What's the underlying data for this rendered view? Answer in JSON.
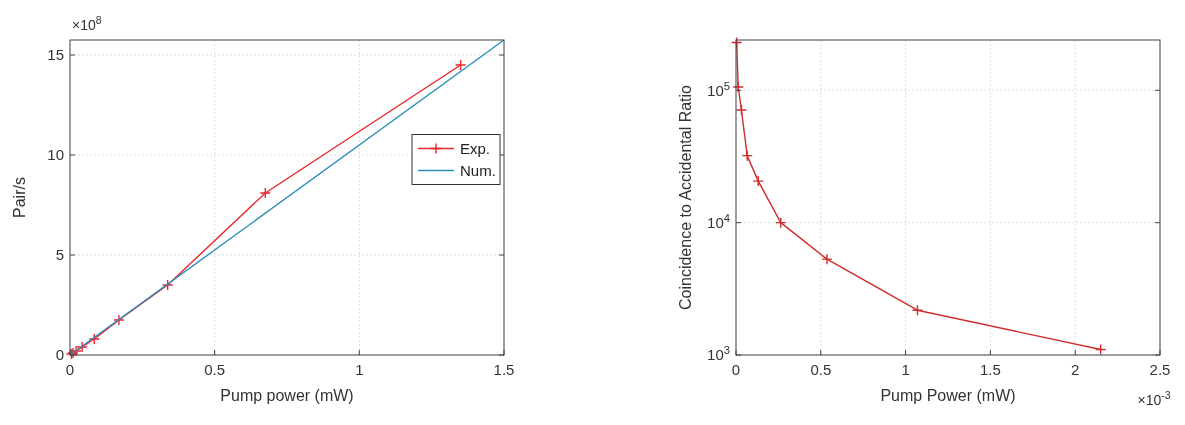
{
  "chart_data": [
    {
      "type": "line",
      "xlabel": "Pump power (mW)",
      "ylabel": "Pair/s",
      "annotations": [
        "×10$^{8}$"
      ],
      "xlim": [
        0,
        1.5
      ],
      "ylim": [
        0,
        15.75
      ],
      "xticks": [
        0,
        0.5,
        1,
        1.5
      ],
      "yticks": [
        0,
        5,
        10,
        15
      ],
      "grid": true,
      "legend": "right",
      "series": [
        {
          "name": "Exp.",
          "color": "#e8262c",
          "marker": "cross",
          "x": [
            0.005,
            0.0105,
            0.021,
            0.042,
            0.084,
            0.169,
            0.3375,
            0.675,
            1.35
          ],
          "values": [
            0.05,
            0.1,
            0.2,
            0.4,
            0.8,
            1.75,
            3.5,
            8.1,
            14.5
          ]
        },
        {
          "name": "Num.",
          "color": "#2b8cbe",
          "marker": "none",
          "x": [
            0,
            1.5
          ],
          "values": [
            0,
            15.75
          ]
        }
      ]
    },
    {
      "type": "line",
      "xlabel": "Pump Power (mW)",
      "ylabel": "Coincidence to Accidental Ratio",
      "annotations": [
        "×10$^{-3}$"
      ],
      "log": "y",
      "xlim": [
        0,
        2.5
      ],
      "ylim": [
        1000,
        240000
      ],
      "xticks": [
        0,
        0.5,
        1,
        1.5,
        2,
        2.5
      ],
      "yticks": [
        {
          "value": 1000,
          "label": "10$^{3}$"
        },
        {
          "value": 10000,
          "label": "10$^{4}$"
        },
        {
          "value": 100000,
          "label": "10$^{5}$"
        }
      ],
      "grid": true,
      "series": [
        {
          "color": "#d02c2c",
          "marker": "cross",
          "x": [
            0.004,
            0.013,
            0.032,
            0.066,
            0.131,
            0.264,
            0.536,
            1.07,
            2.15
          ],
          "values": [
            230000,
            106000,
            71000,
            32100,
            20600,
            10000,
            5300,
            2180,
            1100
          ]
        }
      ]
    }
  ]
}
